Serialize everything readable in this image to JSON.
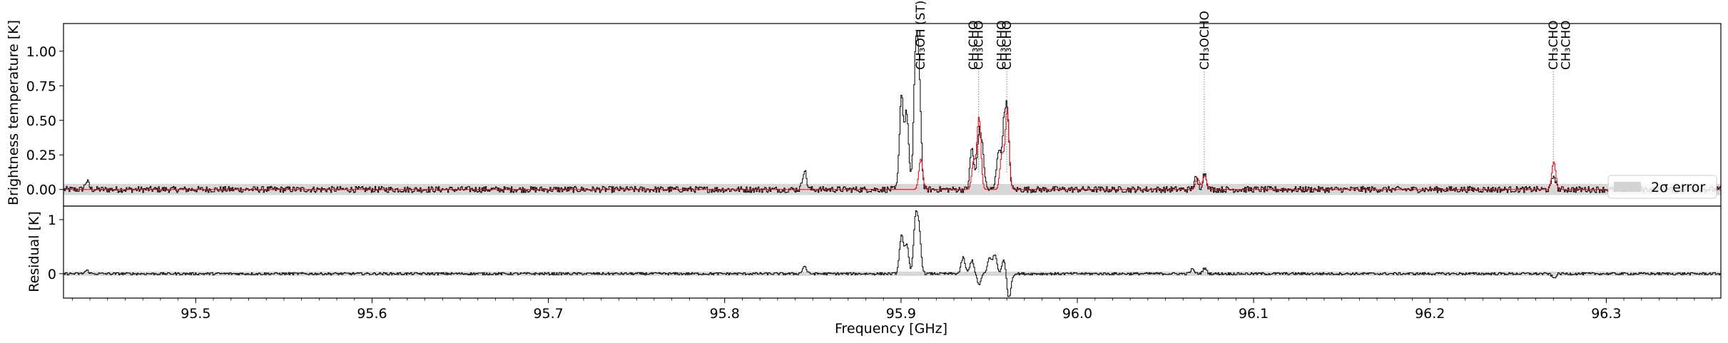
{
  "chart_data": [
    {
      "type": "line",
      "panel": "top",
      "ylabel": "Brightness temperature [K]",
      "xlabel": "",
      "xlim": [
        95.425,
        96.365
      ],
      "ylim": [
        -0.12,
        1.2
      ],
      "yticks": [
        0.0,
        0.25,
        0.5,
        0.75,
        1.0
      ],
      "ytick_labels": [
        "0.00",
        "0.25",
        "0.50",
        "0.75",
        "1.00"
      ],
      "error_band": [
        -0.04,
        0.04
      ],
      "legend": {
        "label": "2σ error",
        "placement": "right"
      },
      "colors": {
        "observed": "#000000",
        "model": "#e8000b",
        "band": "#d3d3d3"
      },
      "observed_peaks": [
        {
          "x": 95.438,
          "y": 0.06
        },
        {
          "x": 95.845,
          "y": 0.14
        },
        {
          "x": 95.9,
          "y": 0.68
        },
        {
          "x": 95.903,
          "y": 0.55
        },
        {
          "x": 95.908,
          "y": 0.9
        },
        {
          "x": 95.91,
          "y": 0.78
        },
        {
          "x": 95.94,
          "y": 0.3
        },
        {
          "x": 95.944,
          "y": 0.38
        },
        {
          "x": 95.946,
          "y": 0.24
        },
        {
          "x": 95.955,
          "y": 0.28
        },
        {
          "x": 95.958,
          "y": 0.4
        },
        {
          "x": 95.96,
          "y": 0.52
        },
        {
          "x": 96.067,
          "y": 0.08
        },
        {
          "x": 96.072,
          "y": 0.12
        },
        {
          "x": 96.27,
          "y": 0.1
        }
      ],
      "model_peaks": [
        {
          "x": 95.911,
          "y": 0.22
        },
        {
          "x": 95.941,
          "y": 0.2
        },
        {
          "x": 95.944,
          "y": 0.52
        },
        {
          "x": 95.957,
          "y": 0.25
        },
        {
          "x": 95.96,
          "y": 0.58
        },
        {
          "x": 96.068,
          "y": 0.08
        },
        {
          "x": 96.072,
          "y": 0.1
        },
        {
          "x": 96.27,
          "y": 0.2
        }
      ],
      "line_labels": [
        {
          "x": 95.911,
          "text": "CH₃OH (ST)"
        },
        {
          "x": 95.941,
          "text": "CH₃CHO"
        },
        {
          "x": 95.944,
          "text": "CH₃CHO"
        },
        {
          "x": 95.957,
          "text": "CH₃CHO"
        },
        {
          "x": 95.96,
          "text": "CH₃CHO"
        },
        {
          "x": 96.072,
          "text": "CH₃OCHO"
        },
        {
          "x": 96.27,
          "text": "CH₃CHO"
        },
        {
          "x": 96.277,
          "text": "CH₃CHO"
        }
      ],
      "line_markers": [
        95.944,
        95.96,
        96.072,
        96.27
      ]
    },
    {
      "type": "line",
      "panel": "bottom",
      "ylabel": "Residual [K]",
      "xlabel": "Frequency [GHz]",
      "xlim": [
        95.425,
        96.365
      ],
      "ylim": [
        -0.45,
        1.25
      ],
      "yticks": [
        0,
        1
      ],
      "ytick_labels": [
        "0",
        "1"
      ],
      "xticks": [
        95.5,
        95.6,
        95.7,
        95.8,
        95.9,
        96.0,
        96.1,
        96.2,
        96.3
      ],
      "xtick_labels": [
        "95.5",
        "95.6",
        "95.7",
        "95.8",
        "95.9",
        "96.0",
        "96.1",
        "96.2",
        "96.3"
      ],
      "error_band": [
        -0.04,
        0.04
      ],
      "residual_peaks": [
        {
          "x": 95.438,
          "y": 0.06
        },
        {
          "x": 95.845,
          "y": 0.14
        },
        {
          "x": 95.9,
          "y": 0.7
        },
        {
          "x": 95.903,
          "y": 0.55
        },
        {
          "x": 95.908,
          "y": 0.95
        },
        {
          "x": 95.91,
          "y": 0.75
        },
        {
          "x": 95.935,
          "y": 0.3
        },
        {
          "x": 95.94,
          "y": 0.25
        },
        {
          "x": 95.944,
          "y": -0.2
        },
        {
          "x": 95.95,
          "y": 0.3
        },
        {
          "x": 95.953,
          "y": 0.35
        },
        {
          "x": 95.958,
          "y": 0.25
        },
        {
          "x": 95.961,
          "y": -0.45
        },
        {
          "x": 96.065,
          "y": 0.08
        },
        {
          "x": 96.072,
          "y": 0.1
        },
        {
          "x": 96.27,
          "y": -0.08
        }
      ]
    }
  ]
}
